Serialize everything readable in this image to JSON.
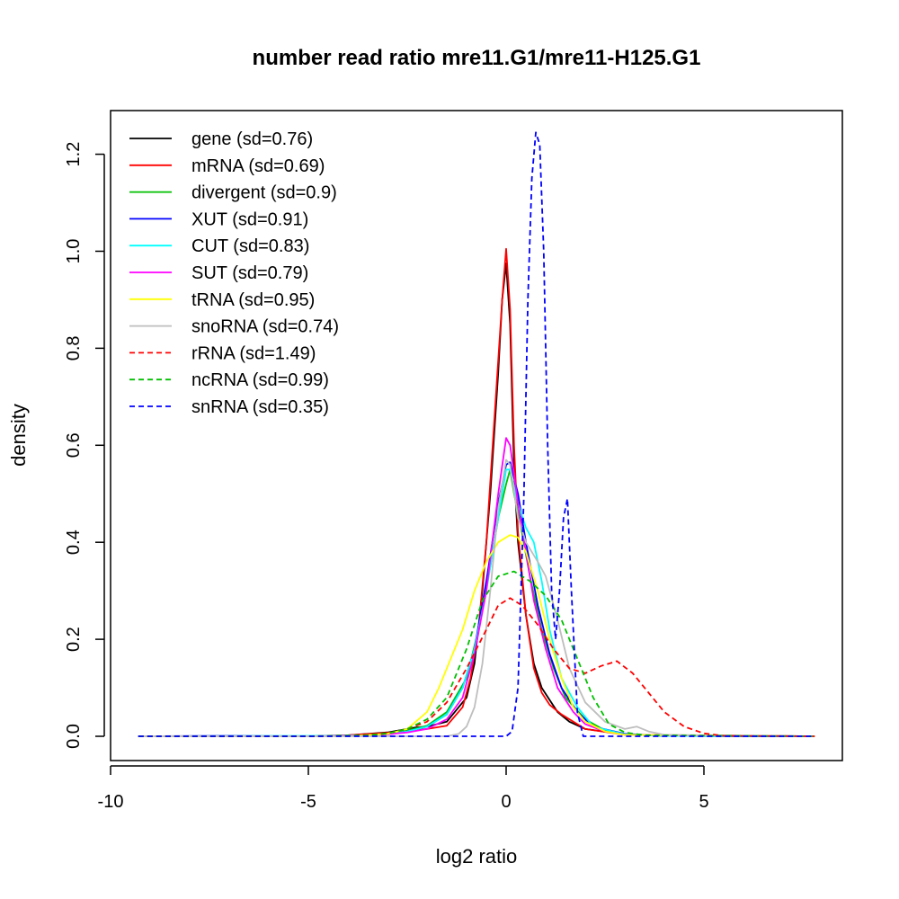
{
  "chart_data": {
    "type": "line",
    "title": "number read ratio mre11.G1/mre11-H125.G1",
    "xlabel": "log2 ratio",
    "ylabel": "density",
    "xlim": [
      -10,
      8.5
    ],
    "ylim": [
      -0.05,
      1.29
    ],
    "x_ticks": [
      -10,
      -5,
      0,
      5
    ],
    "x_tick_labels": [
      "-10",
      "-5",
      "0",
      "5"
    ],
    "y_ticks": [
      0.0,
      0.2,
      0.4,
      0.6,
      0.8,
      1.0,
      1.2
    ],
    "y_tick_labels": [
      "0.0",
      "0.2",
      "0.4",
      "0.6",
      "0.8",
      "1.0",
      "1.2"
    ],
    "legend_position": "top-left",
    "grid": false,
    "series": [
      {
        "name": "gene (sd=0.76)",
        "color": "#000000",
        "dash": "solid",
        "points": [
          [
            -9.3,
            0
          ],
          [
            -5,
            0
          ],
          [
            -4,
            0.002
          ],
          [
            -3,
            0.008
          ],
          [
            -2.3,
            0.018
          ],
          [
            -2,
            0.02
          ],
          [
            -1.5,
            0.03
          ],
          [
            -1,
            0.08
          ],
          [
            -0.8,
            0.15
          ],
          [
            -0.6,
            0.3
          ],
          [
            -0.4,
            0.5
          ],
          [
            -0.2,
            0.75
          ],
          [
            -0.1,
            0.9
          ],
          [
            0,
            0.975
          ],
          [
            0.1,
            0.85
          ],
          [
            0.2,
            0.55
          ],
          [
            0.3,
            0.4
          ],
          [
            0.5,
            0.25
          ],
          [
            0.7,
            0.15
          ],
          [
            0.9,
            0.1
          ],
          [
            1.1,
            0.075
          ],
          [
            1.3,
            0.05
          ],
          [
            1.6,
            0.03
          ],
          [
            2,
            0.015
          ],
          [
            3,
            0.004
          ],
          [
            4,
            0.001
          ],
          [
            7.8,
            0
          ]
        ]
      },
      {
        "name": "mRNA (sd=0.69)",
        "color": "#ff0000",
        "dash": "solid",
        "points": [
          [
            -9.3,
            0
          ],
          [
            -5,
            0
          ],
          [
            -4,
            0.002
          ],
          [
            -3,
            0.007
          ],
          [
            -2.3,
            0.013
          ],
          [
            -2,
            0.015
          ],
          [
            -1.5,
            0.022
          ],
          [
            -1.1,
            0.06
          ],
          [
            -0.9,
            0.12
          ],
          [
            -0.7,
            0.22
          ],
          [
            -0.5,
            0.4
          ],
          [
            -0.3,
            0.65
          ],
          [
            -0.1,
            0.9
          ],
          [
            0,
            1.005
          ],
          [
            0.1,
            0.88
          ],
          [
            0.2,
            0.6
          ],
          [
            0.3,
            0.42
          ],
          [
            0.5,
            0.25
          ],
          [
            0.7,
            0.14
          ],
          [
            0.9,
            0.09
          ],
          [
            1.1,
            0.065
          ],
          [
            1.4,
            0.045
          ],
          [
            1.7,
            0.03
          ],
          [
            2,
            0.015
          ],
          [
            3,
            0.003
          ],
          [
            7.8,
            0
          ]
        ]
      },
      {
        "name": "divergent (sd=0.9)",
        "color": "#00c000",
        "dash": "solid",
        "points": [
          [
            -9.3,
            0
          ],
          [
            -5,
            0
          ],
          [
            -3.5,
            0.002
          ],
          [
            -3,
            0.005
          ],
          [
            -2.5,
            0.012
          ],
          [
            -2,
            0.022
          ],
          [
            -1.5,
            0.05
          ],
          [
            -1,
            0.12
          ],
          [
            -0.7,
            0.22
          ],
          [
            -0.4,
            0.35
          ],
          [
            -0.2,
            0.45
          ],
          [
            0,
            0.52
          ],
          [
            0.1,
            0.55
          ],
          [
            0.2,
            0.5
          ],
          [
            0.4,
            0.42
          ],
          [
            0.6,
            0.33
          ],
          [
            0.9,
            0.22
          ],
          [
            1.2,
            0.14
          ],
          [
            1.5,
            0.08
          ],
          [
            2,
            0.035
          ],
          [
            2.5,
            0.012
          ],
          [
            3,
            0.004
          ],
          [
            4,
            0.001
          ],
          [
            7.8,
            0
          ]
        ]
      },
      {
        "name": "XUT (sd=0.91)",
        "color": "#0000ff",
        "dash": "solid",
        "points": [
          [
            -9.3,
            0
          ],
          [
            -7,
            0.001
          ],
          [
            -5,
            0
          ],
          [
            -3.5,
            0.002
          ],
          [
            -3,
            0.005
          ],
          [
            -2.5,
            0.01
          ],
          [
            -2,
            0.02
          ],
          [
            -1.5,
            0.045
          ],
          [
            -1.1,
            0.1
          ],
          [
            -0.8,
            0.18
          ],
          [
            -0.5,
            0.32
          ],
          [
            -0.2,
            0.48
          ],
          [
            0,
            0.56
          ],
          [
            0.1,
            0.565
          ],
          [
            0.3,
            0.5
          ],
          [
            0.5,
            0.4
          ],
          [
            0.8,
            0.27
          ],
          [
            1.1,
            0.17
          ],
          [
            1.4,
            0.1
          ],
          [
            1.8,
            0.05
          ],
          [
            2.2,
            0.02
          ],
          [
            3,
            0.005
          ],
          [
            4,
            0.001
          ],
          [
            7.8,
            0
          ]
        ]
      },
      {
        "name": "CUT (sd=0.83)",
        "color": "#00ffff",
        "dash": "solid",
        "points": [
          [
            -9.3,
            0
          ],
          [
            -5,
            0.001
          ],
          [
            -3.5,
            0.002
          ],
          [
            -3,
            0.004
          ],
          [
            -2.5,
            0.01
          ],
          [
            -2,
            0.02
          ],
          [
            -1.5,
            0.045
          ],
          [
            -1.1,
            0.1
          ],
          [
            -0.8,
            0.18
          ],
          [
            -0.5,
            0.3
          ],
          [
            -0.2,
            0.45
          ],
          [
            0,
            0.55
          ],
          [
            0.1,
            0.55
          ],
          [
            0.3,
            0.48
          ],
          [
            0.5,
            0.43
          ],
          [
            0.7,
            0.4
          ],
          [
            0.9,
            0.32
          ],
          [
            1.1,
            0.22
          ],
          [
            1.4,
            0.12
          ],
          [
            1.8,
            0.06
          ],
          [
            2.2,
            0.02
          ],
          [
            3,
            0.004
          ],
          [
            4,
            0.001
          ],
          [
            7.8,
            0
          ]
        ]
      },
      {
        "name": "SUT (sd=0.79)",
        "color": "#ff00ff",
        "dash": "solid",
        "points": [
          [
            -9.3,
            0
          ],
          [
            -5,
            0
          ],
          [
            -3.5,
            0.002
          ],
          [
            -3,
            0.004
          ],
          [
            -2.5,
            0.008
          ],
          [
            -2,
            0.015
          ],
          [
            -1.5,
            0.035
          ],
          [
            -1.1,
            0.08
          ],
          [
            -0.8,
            0.17
          ],
          [
            -0.5,
            0.3
          ],
          [
            -0.2,
            0.5
          ],
          [
            0,
            0.615
          ],
          [
            0.1,
            0.6
          ],
          [
            0.3,
            0.48
          ],
          [
            0.5,
            0.38
          ],
          [
            0.7,
            0.28
          ],
          [
            1,
            0.18
          ],
          [
            1.3,
            0.1
          ],
          [
            1.7,
            0.05
          ],
          [
            2,
            0.025
          ],
          [
            2.5,
            0.01
          ],
          [
            3,
            0.003
          ],
          [
            7.8,
            0
          ]
        ]
      },
      {
        "name": "tRNA (sd=0.95)",
        "color": "#ffff00",
        "dash": "solid",
        "points": [
          [
            -9.3,
            0
          ],
          [
            -4,
            0
          ],
          [
            -3,
            0.005
          ],
          [
            -2.5,
            0.015
          ],
          [
            -2,
            0.05
          ],
          [
            -1.7,
            0.1
          ],
          [
            -1.4,
            0.16
          ],
          [
            -1.1,
            0.22
          ],
          [
            -0.8,
            0.3
          ],
          [
            -0.5,
            0.36
          ],
          [
            -0.2,
            0.4
          ],
          [
            0.1,
            0.415
          ],
          [
            0.3,
            0.41
          ],
          [
            0.5,
            0.38
          ],
          [
            0.8,
            0.3
          ],
          [
            1.1,
            0.2
          ],
          [
            1.4,
            0.12
          ],
          [
            1.7,
            0.06
          ],
          [
            2,
            0.03
          ],
          [
            2.5,
            0.01
          ],
          [
            3,
            0.003
          ],
          [
            7.8,
            0
          ]
        ]
      },
      {
        "name": "snoRNA (sd=0.74)",
        "color": "#bebebe",
        "dash": "solid",
        "points": [
          [
            -9.3,
            0
          ],
          [
            -1.5,
            0
          ],
          [
            -1.2,
            0.005
          ],
          [
            -1,
            0.02
          ],
          [
            -0.8,
            0.06
          ],
          [
            -0.6,
            0.15
          ],
          [
            -0.4,
            0.3
          ],
          [
            -0.2,
            0.47
          ],
          [
            0,
            0.57
          ],
          [
            0.1,
            0.56
          ],
          [
            0.3,
            0.45
          ],
          [
            0.5,
            0.4
          ],
          [
            0.8,
            0.36
          ],
          [
            1,
            0.33
          ],
          [
            1.3,
            0.24
          ],
          [
            1.6,
            0.14
          ],
          [
            2,
            0.07
          ],
          [
            2.5,
            0.03
          ],
          [
            3,
            0.015
          ],
          [
            3.3,
            0.02
          ],
          [
            3.6,
            0.01
          ],
          [
            4,
            0.003
          ],
          [
            7.8,
            0
          ]
        ]
      },
      {
        "name": "rRNA (sd=1.49)",
        "color": "#ff0000",
        "dash": "dashed",
        "points": [
          [
            -9.3,
            0
          ],
          [
            -5,
            0
          ],
          [
            -3.5,
            0.002
          ],
          [
            -3,
            0.006
          ],
          [
            -2.5,
            0.015
          ],
          [
            -2,
            0.03
          ],
          [
            -1.5,
            0.07
          ],
          [
            -1,
            0.14
          ],
          [
            -0.5,
            0.22
          ],
          [
            -0.2,
            0.27
          ],
          [
            0.1,
            0.285
          ],
          [
            0.4,
            0.27
          ],
          [
            0.8,
            0.23
          ],
          [
            1.2,
            0.18
          ],
          [
            1.6,
            0.14
          ],
          [
            2,
            0.13
          ],
          [
            2.4,
            0.145
          ],
          [
            2.8,
            0.155
          ],
          [
            3.2,
            0.13
          ],
          [
            3.6,
            0.09
          ],
          [
            4,
            0.05
          ],
          [
            4.5,
            0.02
          ],
          [
            5,
            0.006
          ],
          [
            5.5,
            0.001
          ],
          [
            7.8,
            0
          ]
        ]
      },
      {
        "name": "ncRNA (sd=0.99)",
        "color": "#00c000",
        "dash": "dashed",
        "points": [
          [
            -9.3,
            0
          ],
          [
            -5,
            0
          ],
          [
            -3.5,
            0.002
          ],
          [
            -3,
            0.006
          ],
          [
            -2.5,
            0.015
          ],
          [
            -2,
            0.035
          ],
          [
            -1.5,
            0.08
          ],
          [
            -1,
            0.18
          ],
          [
            -0.6,
            0.28
          ],
          [
            -0.2,
            0.33
          ],
          [
            0.2,
            0.34
          ],
          [
            0.6,
            0.32
          ],
          [
            1,
            0.29
          ],
          [
            1.4,
            0.24
          ],
          [
            1.8,
            0.16
          ],
          [
            2.2,
            0.08
          ],
          [
            2.6,
            0.025
          ],
          [
            3,
            0.008
          ],
          [
            3.5,
            0.002
          ],
          [
            7.8,
            0
          ]
        ]
      },
      {
        "name": "snRNA (sd=0.35)",
        "color": "#0000ff",
        "dash": "dashed",
        "points": [
          [
            -9.3,
            0
          ],
          [
            0,
            0
          ],
          [
            0.15,
            0.01
          ],
          [
            0.3,
            0.1
          ],
          [
            0.45,
            0.5
          ],
          [
            0.55,
            0.9
          ],
          [
            0.65,
            1.15
          ],
          [
            0.75,
            1.245
          ],
          [
            0.85,
            1.22
          ],
          [
            0.95,
            1.0
          ],
          [
            1.05,
            0.6
          ],
          [
            1.15,
            0.3
          ],
          [
            1.25,
            0.2
          ],
          [
            1.35,
            0.3
          ],
          [
            1.45,
            0.45
          ],
          [
            1.55,
            0.49
          ],
          [
            1.65,
            0.3
          ],
          [
            1.8,
            0.05
          ],
          [
            1.95,
            0
          ],
          [
            7.8,
            0
          ]
        ]
      }
    ]
  }
}
